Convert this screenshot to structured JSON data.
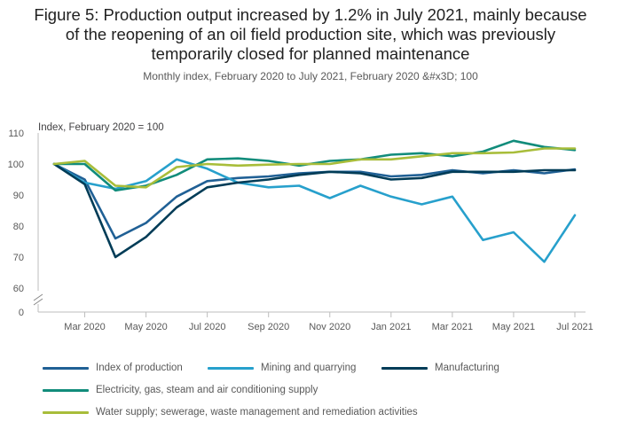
{
  "figure": {
    "title": "Figure 5: Production output increased by 1.2% in July 2021, mainly because\nof the reopening of an oil field production site, which was previously\ntemporarily closed for planned maintenance",
    "subtitle": "Monthly index, February 2020 to July 2021, February 2020 &#x3D; 100"
  },
  "chart_data": {
    "type": "line",
    "ylabel": "Index, February 2020 = 100",
    "ylim": [
      60,
      110
    ],
    "y_axis_break": true,
    "y_ticks": [
      "110",
      "100",
      "90",
      "80",
      "70",
      "60",
      "0"
    ],
    "x": [
      "Feb 2020",
      "Mar 2020",
      "Apr 2020",
      "May 2020",
      "Jun 2020",
      "Jul 2020",
      "Aug 2020",
      "Sep 2020",
      "Oct 2020",
      "Nov 2020",
      "Dec 2020",
      "Jan 2021",
      "Feb 2021",
      "Mar 2021",
      "Apr 2021",
      "May 2021",
      "Jun 2021",
      "Jul 2021"
    ],
    "x_tick_labels": [
      "Mar 2020",
      "May 2020",
      "Jul 2020",
      "Sep 2020",
      "Nov 2020",
      "Jan 2021",
      "Mar 2021",
      "May 2021",
      "Jul 2021"
    ],
    "x_tick_indices": [
      1,
      3,
      5,
      7,
      9,
      11,
      13,
      15,
      17
    ],
    "grid": false,
    "legend_position": "bottom",
    "series": [
      {
        "name": "Index of production",
        "color": "#206095",
        "values": [
          100,
          95,
          76,
          81,
          89.5,
          94.5,
          95.5,
          96,
          97,
          97.5,
          97.5,
          96,
          96.5,
          98,
          97,
          98,
          97,
          98.3
        ]
      },
      {
        "name": "Mining and quarrying",
        "color": "#27a0cc",
        "values": [
          100,
          94,
          92,
          94.5,
          101.5,
          98.5,
          94,
          92.5,
          93,
          89,
          93,
          89.5,
          87,
          89.5,
          75.5,
          78,
          68.5,
          83.5
        ]
      },
      {
        "name": "Manufacturing",
        "color": "#003c57",
        "values": [
          100,
          93.5,
          70,
          76.5,
          86,
          92.5,
          94,
          95,
          96.5,
          97.5,
          97,
          95,
          95.5,
          97.5,
          97.5,
          97.5,
          98,
          98
        ]
      },
      {
        "name": "Electricity, gas, steam and air conditioning supply",
        "color": "#118c7b",
        "values": [
          100,
          100,
          91.5,
          93,
          96.5,
          101.5,
          101.8,
          101,
          99.5,
          101,
          101.5,
          103,
          103.5,
          102.5,
          104,
          107.5,
          105.5,
          104.5
        ]
      },
      {
        "name": "Water supply; sewerage, waste management and remediation activities",
        "color": "#a8bd3a",
        "values": [
          100,
          101,
          93,
          92.5,
          99,
          100,
          99.5,
          99.8,
          100,
          100,
          101.5,
          101.5,
          102.5,
          103.5,
          103.5,
          103.7,
          105,
          105
        ]
      }
    ]
  }
}
